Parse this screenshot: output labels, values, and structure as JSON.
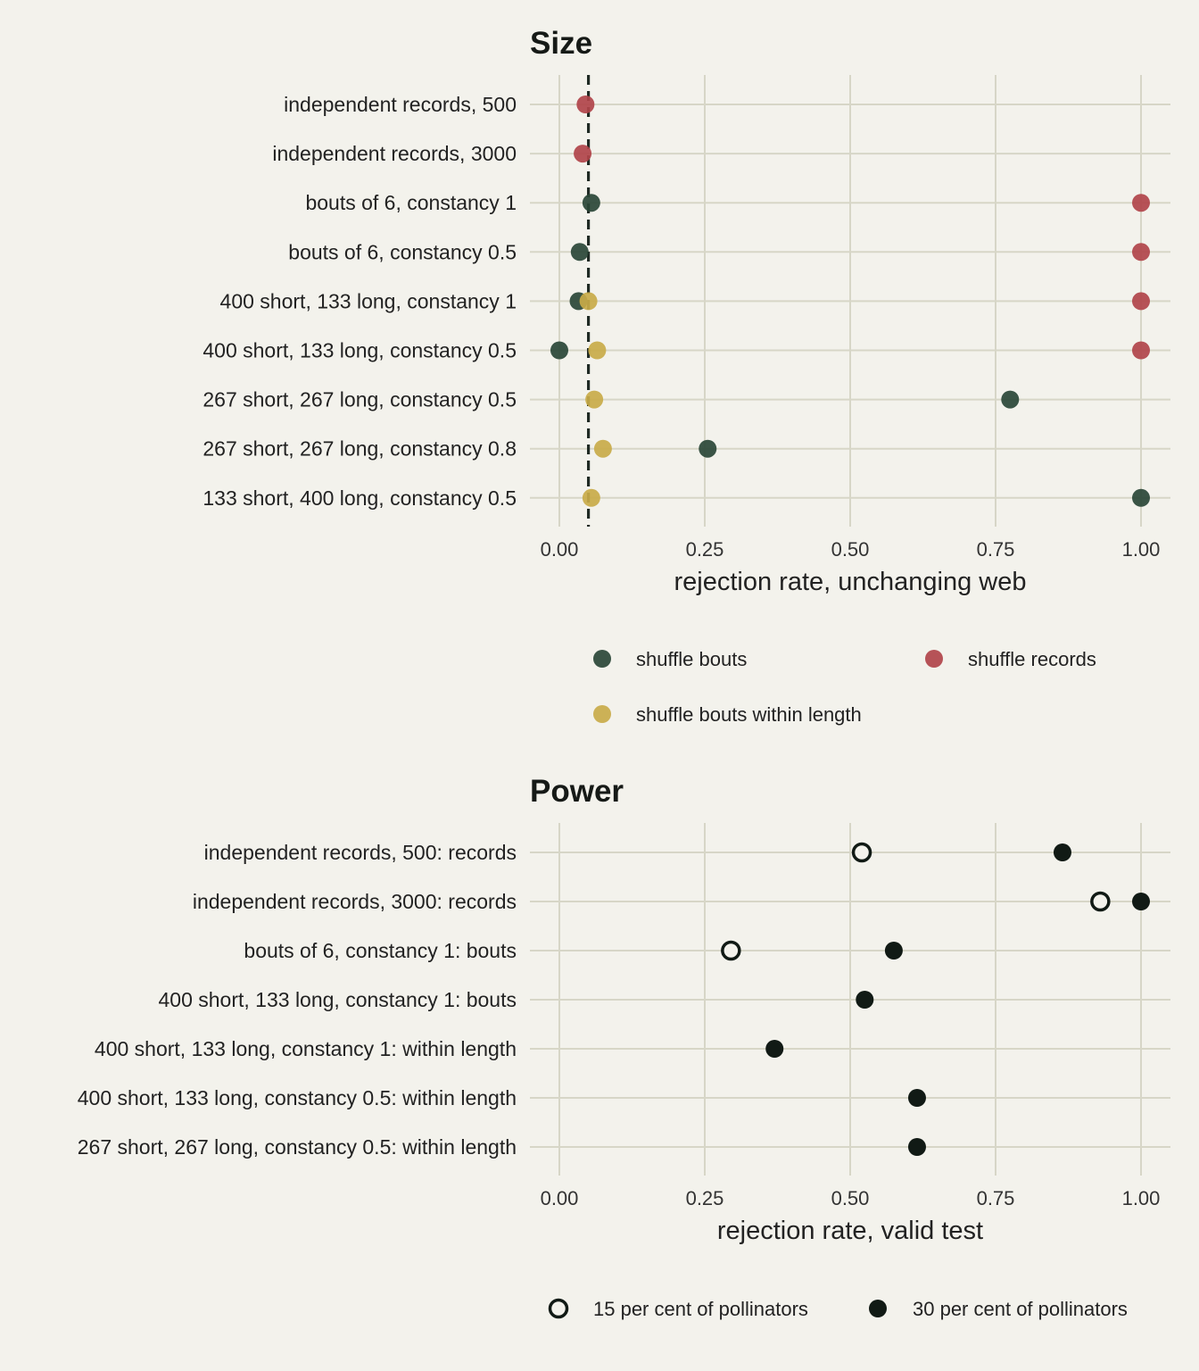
{
  "chart_data": [
    {
      "type": "scatter",
      "title": "Size",
      "xlabel": "rejection rate, unchanging web",
      "ylabel": "",
      "xlim": [
        -0.05,
        1.05
      ],
      "xticks": [
        "0.00",
        "0.25",
        "0.50",
        "0.75",
        "1.00"
      ],
      "reference_line": {
        "x": 0.05,
        "style": "dashed"
      },
      "categories": [
        "independent records, 500",
        "independent records, 3000",
        "bouts of 6, constancy 1",
        "bouts of 6, constancy 0.5",
        "400 short, 133 long, constancy 1",
        "400 short, 133 long, constancy 0.5",
        "267 short, 267 long, constancy 0.5",
        "267 short, 267 long, constancy 0.8",
        "133 short, 400 long, constancy 0.5"
      ],
      "series": [
        {
          "name": "shuffle bouts",
          "color": "#2a4637",
          "values": [
            null,
            null,
            0.055,
            0.035,
            0.033,
            0.0,
            0.775,
            0.255,
            1.0
          ]
        },
        {
          "name": "shuffle records",
          "color": "#b1444a",
          "values": [
            0.045,
            0.04,
            1.0,
            1.0,
            1.0,
            1.0,
            null,
            null,
            null
          ]
        },
        {
          "name": "shuffle bouts within length",
          "color": "#c9ab49",
          "values": [
            null,
            null,
            null,
            null,
            0.05,
            0.065,
            0.06,
            0.075,
            0.055
          ]
        }
      ],
      "grid": true,
      "legend_position": "bottom"
    },
    {
      "type": "scatter",
      "title": "Power",
      "xlabel": "rejection rate, valid test",
      "ylabel": "",
      "xlim": [
        -0.05,
        1.05
      ],
      "xticks": [
        "0.00",
        "0.25",
        "0.50",
        "0.75",
        "1.00"
      ],
      "categories": [
        "independent records, 500: records",
        "independent records, 3000: records",
        "bouts of 6, constancy 1: bouts",
        "400 short, 133 long, constancy 1: bouts",
        "400 short, 133 long, constancy 1: within length",
        "400 short, 133 long, constancy 0.5: within length",
        "267 short, 267 long, constancy 0.5: within length"
      ],
      "series": [
        {
          "name": "15 per cent of pollinators",
          "marker": "open-circle",
          "color": "#111a15",
          "values": [
            0.52,
            0.93,
            0.295,
            null,
            null,
            null,
            null
          ]
        },
        {
          "name": "30 per cent of pollinators",
          "marker": "filled-circle",
          "color": "#111a15",
          "values": [
            0.865,
            1.0,
            0.575,
            0.525,
            0.37,
            0.615,
            0.615
          ]
        }
      ],
      "grid": true,
      "legend_position": "bottom"
    }
  ]
}
